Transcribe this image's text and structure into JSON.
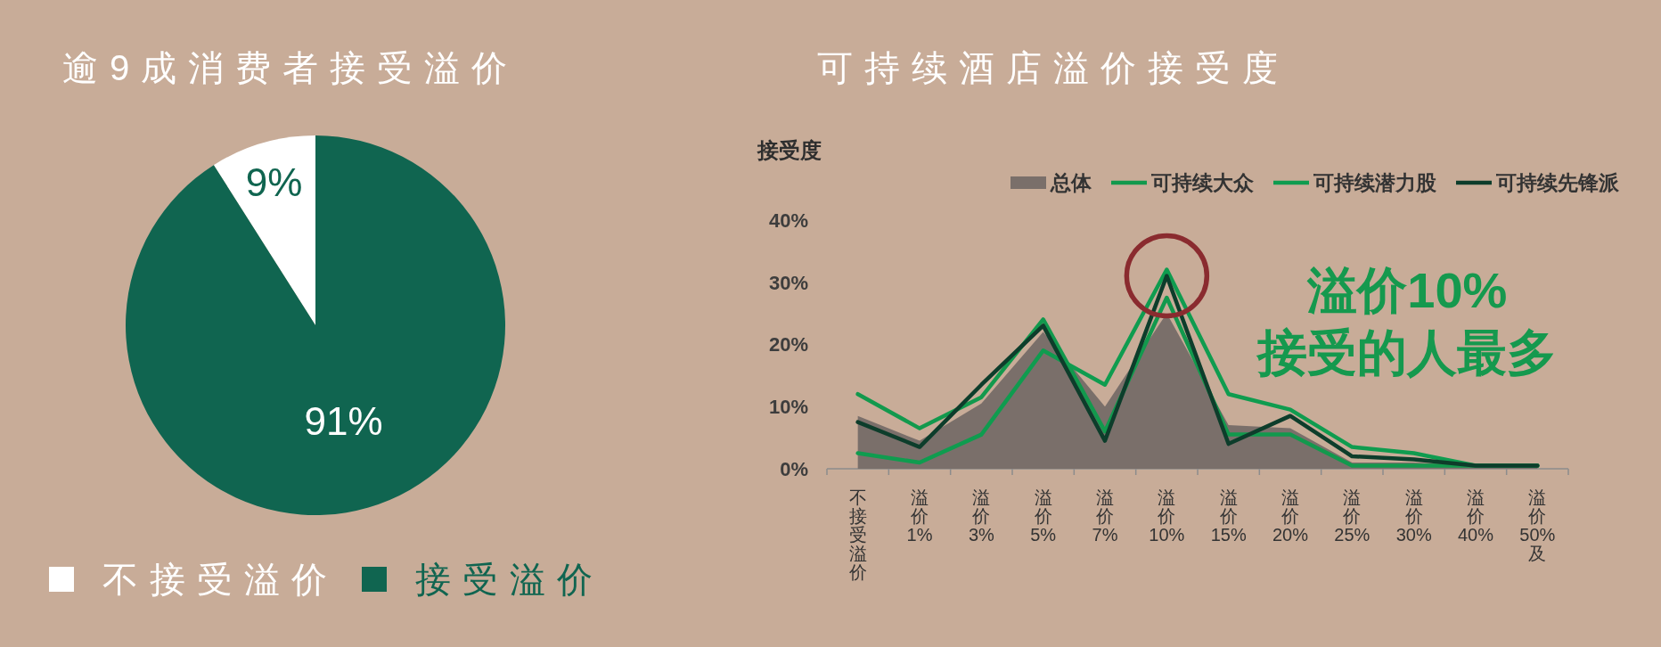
{
  "chart_data": [
    {
      "type": "pie",
      "title": "逾9成消费者接受溢价",
      "categories": [
        "不接受溢价",
        "接受溢价"
      ],
      "values": [
        9,
        91
      ],
      "colors": [
        "#ffffff",
        "#106550"
      ],
      "value_labels": [
        "9%",
        "91%"
      ],
      "legend": "bottom"
    },
    {
      "type": "line",
      "title": "可持续酒店溢价接受度",
      "ylabel": "接受度",
      "categories": [
        "不接受溢价",
        "溢价1%",
        "溢价3%",
        "溢价5%",
        "溢价7%",
        "溢价10%",
        "溢价15%",
        "溢价20%",
        "溢价25%",
        "溢价30%",
        "溢价40%",
        "溢价50%及"
      ],
      "series": [
        {
          "name": "总体",
          "type": "area",
          "color": "#7a6f6a",
          "values": [
            8.5,
            4.5,
            10.5,
            22,
            10,
            25,
            7,
            6.5,
            1,
            1,
            0.5,
            0.5
          ]
        },
        {
          "name": "可持续大众",
          "color": "#12994d",
          "values": [
            12,
            6.5,
            11.5,
            24,
            6,
            27.5,
            5.5,
            5.5,
            0.5,
            0.5,
            0.5,
            0.5
          ]
        },
        {
          "name": "可持续潜力股",
          "color": "#0f9c4f",
          "values": [
            2.5,
            1,
            5.5,
            19,
            13.5,
            32,
            12,
            9.5,
            3.5,
            2.5,
            0.5,
            0.5
          ]
        },
        {
          "name": "可持续先锋派",
          "color": "#0d3d2b",
          "values": [
            7.5,
            3.5,
            13.5,
            23,
            4.5,
            31,
            4,
            8.5,
            2,
            1.5,
            0.5,
            0.5
          ]
        }
      ],
      "ylim": [
        0,
        40
      ],
      "yticks": [
        {
          "value": 0,
          "label": "0%"
        },
        {
          "value": 10,
          "label": "10%"
        },
        {
          "value": 20,
          "label": "20%"
        },
        {
          "value": 30,
          "label": "30%"
        },
        {
          "value": 40,
          "label": "40%"
        }
      ],
      "legend": "top right",
      "annotations": [
        {
          "text": "溢价10%\n接受的人最多",
          "x": "溢价10%",
          "y": 31
        }
      ]
    }
  ]
}
